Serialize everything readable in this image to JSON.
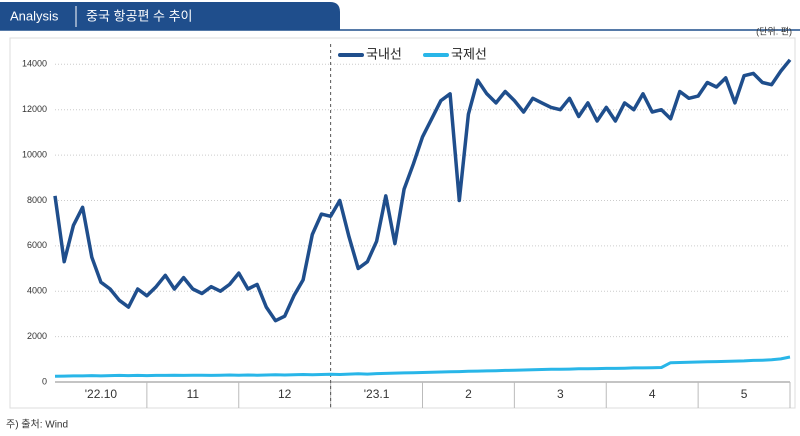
{
  "chart_data": {
    "type": "line",
    "badge": "Analysis",
    "title": "중국 항공편 수 추이",
    "unit_label": "(단위: 편)",
    "source": "주) 출처: Wind",
    "categories": [
      null,
      null,
      null,
      null,
      null,
      "'22.10",
      null,
      null,
      null,
      null,
      null,
      null,
      null,
      null,
      null,
      "11",
      null,
      null,
      null,
      null,
      null,
      null,
      null,
      null,
      null,
      "12",
      null,
      null,
      null,
      null,
      null,
      null,
      null,
      null,
      null,
      "'23.1",
      null,
      null,
      null,
      null,
      null,
      null,
      null,
      null,
      null,
      "2",
      null,
      null,
      null,
      null,
      null,
      null,
      null,
      null,
      null,
      "3",
      null,
      null,
      null,
      null,
      null,
      null,
      null,
      null,
      null,
      "4",
      null,
      null,
      null,
      null,
      null,
      null,
      null,
      null,
      null,
      "5",
      null,
      null,
      null,
      null,
      null
    ],
    "series": [
      {
        "name": "국내선",
        "color": "#1f4e8c",
        "values": [
          8200,
          5300,
          6900,
          7700,
          5500,
          4400,
          4100,
          3600,
          3300,
          4100,
          3800,
          4200,
          4700,
          4100,
          4600,
          4100,
          3900,
          4200,
          4000,
          4300,
          4800,
          4100,
          4300,
          3300,
          2700,
          2900,
          3800,
          4500,
          6500,
          7400,
          7300,
          8000,
          6400,
          5000,
          5300,
          6200,
          8200,
          6100,
          8500,
          9600,
          10800,
          11600,
          12400,
          12700,
          8000,
          11800,
          13300,
          12700,
          12300,
          12800,
          12400,
          11900,
          12500,
          12300,
          12100,
          12000,
          12500,
          11700,
          12300,
          11500,
          12100,
          11500,
          12300,
          12000,
          12700,
          11900,
          12000,
          11600,
          12800,
          12500,
          12600,
          13200,
          13000,
          13400,
          12300,
          13500,
          13600,
          13200,
          13100,
          13700,
          14200
        ]
      },
      {
        "name": "국제선",
        "color": "#29b6e8",
        "values": [
          250,
          260,
          270,
          270,
          280,
          270,
          280,
          290,
          280,
          290,
          280,
          290,
          290,
          300,
          290,
          300,
          300,
          290,
          300,
          310,
          300,
          310,
          300,
          310,
          320,
          310,
          320,
          330,
          320,
          330,
          340,
          330,
          350,
          360,
          350,
          370,
          380,
          390,
          400,
          410,
          420,
          430,
          440,
          450,
          460,
          470,
          480,
          490,
          500,
          510,
          520,
          530,
          540,
          550,
          560,
          560,
          570,
          580,
          580,
          590,
          600,
          600,
          610,
          620,
          620,
          630,
          640,
          850,
          860,
          870,
          880,
          890,
          900,
          910,
          920,
          930,
          950,
          960,
          980,
          1020,
          1100
        ]
      }
    ],
    "ylim": [
      0,
      15600
    ],
    "yticks": [
      0,
      2000,
      4000,
      6000,
      8000,
      10000,
      12000,
      14000
    ],
    "legend": "top-center"
  }
}
